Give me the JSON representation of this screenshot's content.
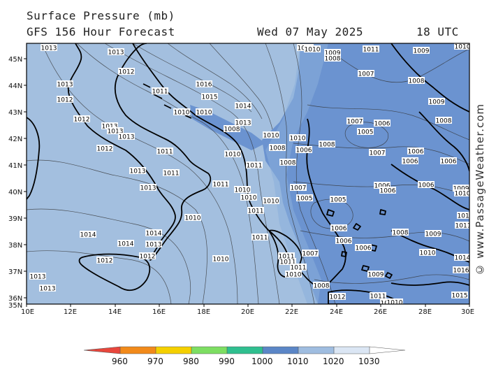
{
  "header": {
    "title": "Surface Pressure (mb)",
    "subtitle": "GFS 156 Hour Forecast",
    "date": "Wed 07 May 2025",
    "time": "18 UTC"
  },
  "watermark": "© www.PassageWeather.com",
  "axes": {
    "lat_labels": [
      "45N",
      "44N",
      "43N",
      "42N",
      "41N",
      "40N",
      "39N",
      "38N",
      "37N",
      "36N",
      "35N"
    ],
    "lon_labels": [
      "10E",
      "12E",
      "14E",
      "16E",
      "18E",
      "20E",
      "22E",
      "24E",
      "26E",
      "28E",
      "30E"
    ]
  },
  "colorbar": {
    "ticks": [
      "960",
      "970",
      "980",
      "990",
      "1000",
      "1010",
      "1020",
      "1030"
    ],
    "colors": [
      "#e8463c",
      "#f28a1a",
      "#f5d000",
      "#7dde62",
      "#2fbf8f",
      "#5b86c7",
      "#9fbde0",
      "#dbe6f4"
    ]
  },
  "map_colors": {
    "base": "#a3bfdf",
    "low": "#6b93d0",
    "mid": "#8aaedb"
  },
  "pressure_labels": [
    {
      "t": "1013"
    },
    {
      "t": "1013"
    },
    {
      "t": "1012"
    },
    {
      "t": "1013"
    },
    {
      "t": "1012"
    },
    {
      "t": "1012"
    },
    {
      "t": "1013"
    },
    {
      "t": "1013"
    },
    {
      "t": "1013"
    },
    {
      "t": "1012"
    },
    {
      "t": "1011"
    },
    {
      "t": "1011"
    },
    {
      "t": "1013"
    },
    {
      "t": "1013"
    },
    {
      "t": "1011"
    },
    {
      "t": "1010"
    },
    {
      "t": "1010"
    },
    {
      "t": "1016"
    },
    {
      "t": "1015"
    },
    {
      "t": "1014"
    },
    {
      "t": "1013"
    },
    {
      "t": "1008"
    },
    {
      "t": "1010"
    },
    {
      "t": "1011"
    },
    {
      "t": "1011"
    },
    {
      "t": "1014"
    },
    {
      "t": "1014"
    },
    {
      "t": "1013"
    },
    {
      "t": "1012"
    },
    {
      "t": "1012"
    },
    {
      "t": "1014"
    },
    {
      "t": "1013"
    },
    {
      "t": "1011"
    },
    {
      "t": "1010"
    },
    {
      "t": "1010"
    },
    {
      "t": "1010"
    },
    {
      "t": "1010"
    },
    {
      "t": "1011"
    },
    {
      "t": "1011"
    },
    {
      "t": "1010"
    },
    {
      "t": "1011"
    },
    {
      "t": "1010"
    },
    {
      "t": "1010"
    },
    {
      "t": "1010"
    },
    {
      "t": "1007"
    },
    {
      "t": "1008"
    },
    {
      "t": "1008"
    },
    {
      "t": "1006"
    },
    {
      "t": "1008"
    },
    {
      "t": "1007"
    },
    {
      "t": "1005"
    },
    {
      "t": "1005"
    },
    {
      "t": "1006"
    },
    {
      "t": "1007"
    },
    {
      "t": "1008"
    },
    {
      "t": "1012"
    },
    {
      "t": "1010"
    },
    {
      "t": "1009"
    },
    {
      "t": "1008"
    },
    {
      "t": "1011"
    },
    {
      "t": "1013"
    },
    {
      "t": "1008"
    },
    {
      "t": "1007"
    },
    {
      "t": "1005"
    },
    {
      "t": "1006"
    },
    {
      "t": "1006"
    },
    {
      "t": "1006"
    },
    {
      "t": "1006"
    },
    {
      "t": "1006"
    },
    {
      "t": "1006"
    },
    {
      "t": "1006"
    },
    {
      "t": "1006"
    },
    {
      "t": "1009"
    },
    {
      "t": "1008"
    },
    {
      "t": "1009"
    },
    {
      "t": "1011"
    },
    {
      "t": "1009"
    },
    {
      "t": "1007"
    },
    {
      "t": "1006"
    },
    {
      "t": "1010"
    },
    {
      "t": "1014"
    },
    {
      "t": "1016"
    },
    {
      "t": "1015"
    },
    {
      "t": "1009"
    },
    {
      "t": "1010"
    },
    {
      "t": "1012"
    },
    {
      "t": "1011"
    },
    {
      "t": "1010"
    },
    {
      "t": "1010"
    },
    {
      "t": "1008"
    },
    {
      "t": "1009"
    },
    {
      "t": "1011"
    },
    {
      "t": "1010"
    },
    {
      "t": "1011"
    }
  ]
}
